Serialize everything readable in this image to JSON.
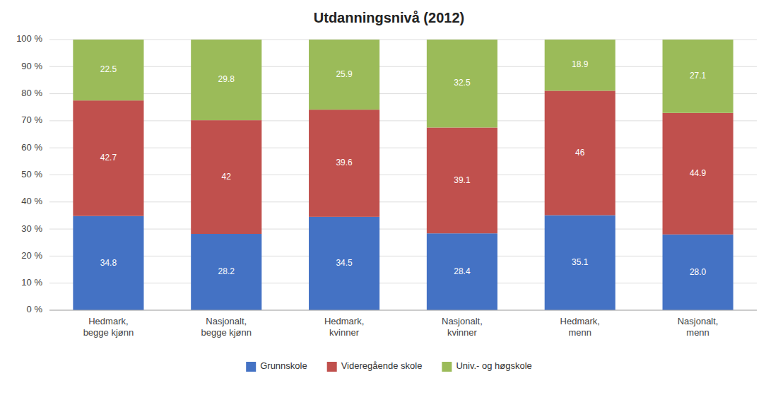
{
  "chart_data": {
    "type": "bar",
    "stacked": true,
    "title": "Utdanningsnivå (2012)",
    "categories": [
      "Hedmark,\nbegge kjønn",
      "Nasjonalt,\nbegge kjønn",
      "Hedmark,\nkvinner",
      "Nasjonalt,\nkvinner",
      "Hedmark,\nmenn",
      "Nasjonalt,\nmenn"
    ],
    "series": [
      {
        "name": "Grunnskole",
        "color": "#4472C4",
        "values": [
          34.8,
          28.2,
          34.5,
          28.4,
          35.1,
          28.0
        ],
        "value_labels": [
          "34.8",
          "28.2",
          "34.5",
          "28.4",
          "35.1",
          "28.0"
        ]
      },
      {
        "name": "Videregående skole",
        "color": "#C0504D",
        "values": [
          42.7,
          42.0,
          39.6,
          39.1,
          46.0,
          44.9
        ]
      },
      {
        "name": "Univ.- og høgskole",
        "color": "#9BBB59",
        "values": [
          22.5,
          29.8,
          25.9,
          32.5,
          18.9,
          27.1
        ]
      }
    ],
    "ylim": [
      0,
      100
    ],
    "yticks": [
      {
        "value": 0,
        "label": "0 %"
      },
      {
        "value": 10,
        "label": "10 %"
      },
      {
        "value": 20,
        "label": "20 %"
      },
      {
        "value": 30,
        "label": "30 %"
      },
      {
        "value": 40,
        "label": "40 %"
      },
      {
        "value": 50,
        "label": "50 %"
      },
      {
        "value": 60,
        "label": "60 %"
      },
      {
        "value": 70,
        "label": "70 %"
      },
      {
        "value": 80,
        "label": "80 %"
      },
      {
        "value": 90,
        "label": "90 %"
      },
      {
        "value": 100,
        "label": "100 %"
      }
    ],
    "grid": true,
    "legend": "bottom",
    "data_labels": true
  }
}
